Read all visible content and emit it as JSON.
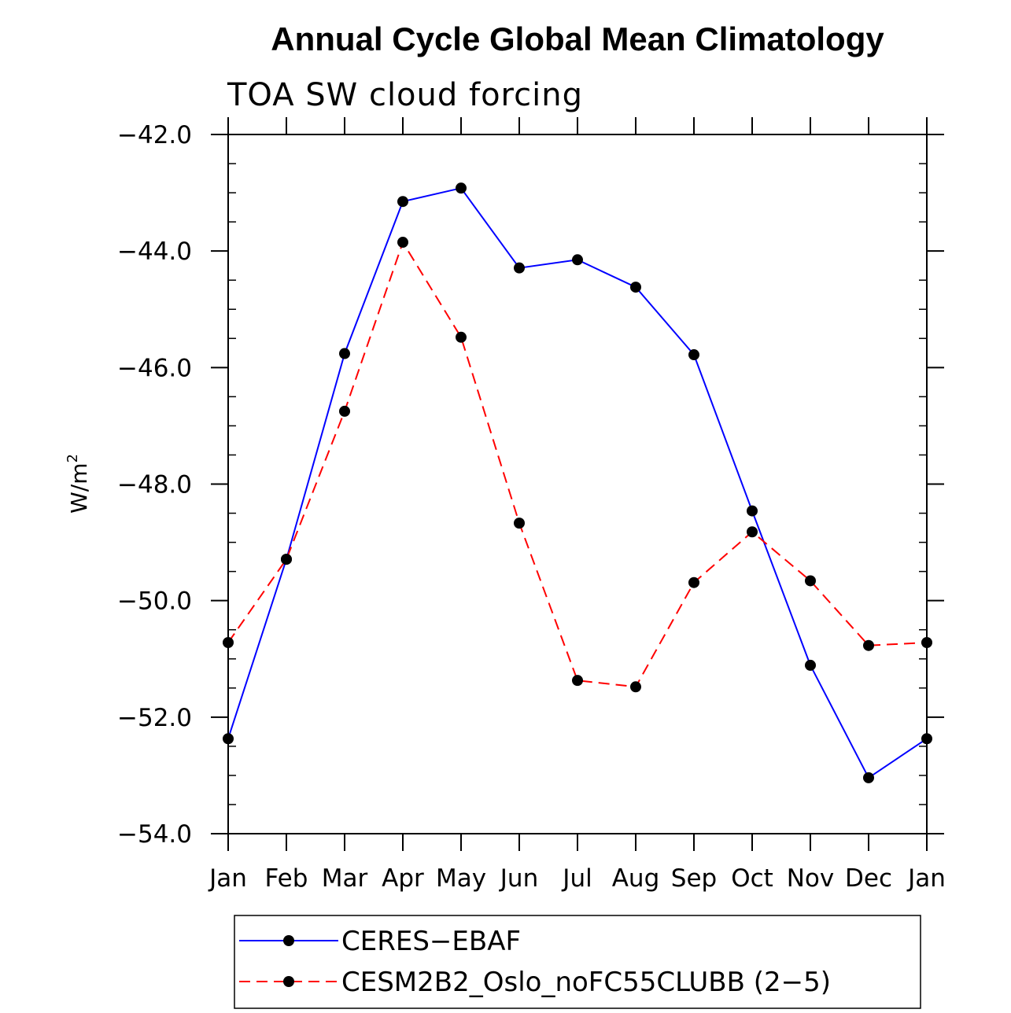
{
  "chart_data": {
    "type": "line",
    "title": "Annual Cycle Global Mean Climatology",
    "subtitle": "TOA SW cloud forcing",
    "ylabel_base": "W/m",
    "ylabel_sup": "2",
    "xlabel": "",
    "categories": [
      "Jan",
      "Feb",
      "Mar",
      "Apr",
      "May",
      "Jun",
      "Jul",
      "Aug",
      "Sep",
      "Oct",
      "Nov",
      "Dec",
      "Jan"
    ],
    "ylim": [
      -54.0,
      -42.0
    ],
    "yticks": [
      -42.0,
      -44.0,
      -46.0,
      -48.0,
      -50.0,
      -52.0,
      -54.0
    ],
    "ytick_labels": [
      "−42.0",
      "−44.0",
      "−46.0",
      "−48.0",
      "−50.0",
      "−52.0",
      "−54.0"
    ],
    "series": [
      {
        "name": "CERES−EBAF",
        "color": "#0000ff",
        "dash": "solid",
        "values": [
          -52.37,
          -49.29,
          -45.76,
          -43.15,
          -42.92,
          -44.29,
          -44.15,
          -44.62,
          -45.78,
          -48.46,
          -51.11,
          -53.04,
          -52.37
        ]
      },
      {
        "name": "CESM2B2_Oslo_noFC55CLUBB (2−5)",
        "color": "#ff0000",
        "dash": "dashed",
        "values": [
          -50.72,
          -49.29,
          -46.75,
          -43.85,
          -45.48,
          -48.67,
          -51.37,
          -51.48,
          -49.69,
          -48.82,
          -49.66,
          -50.77,
          -50.72
        ]
      }
    ]
  }
}
